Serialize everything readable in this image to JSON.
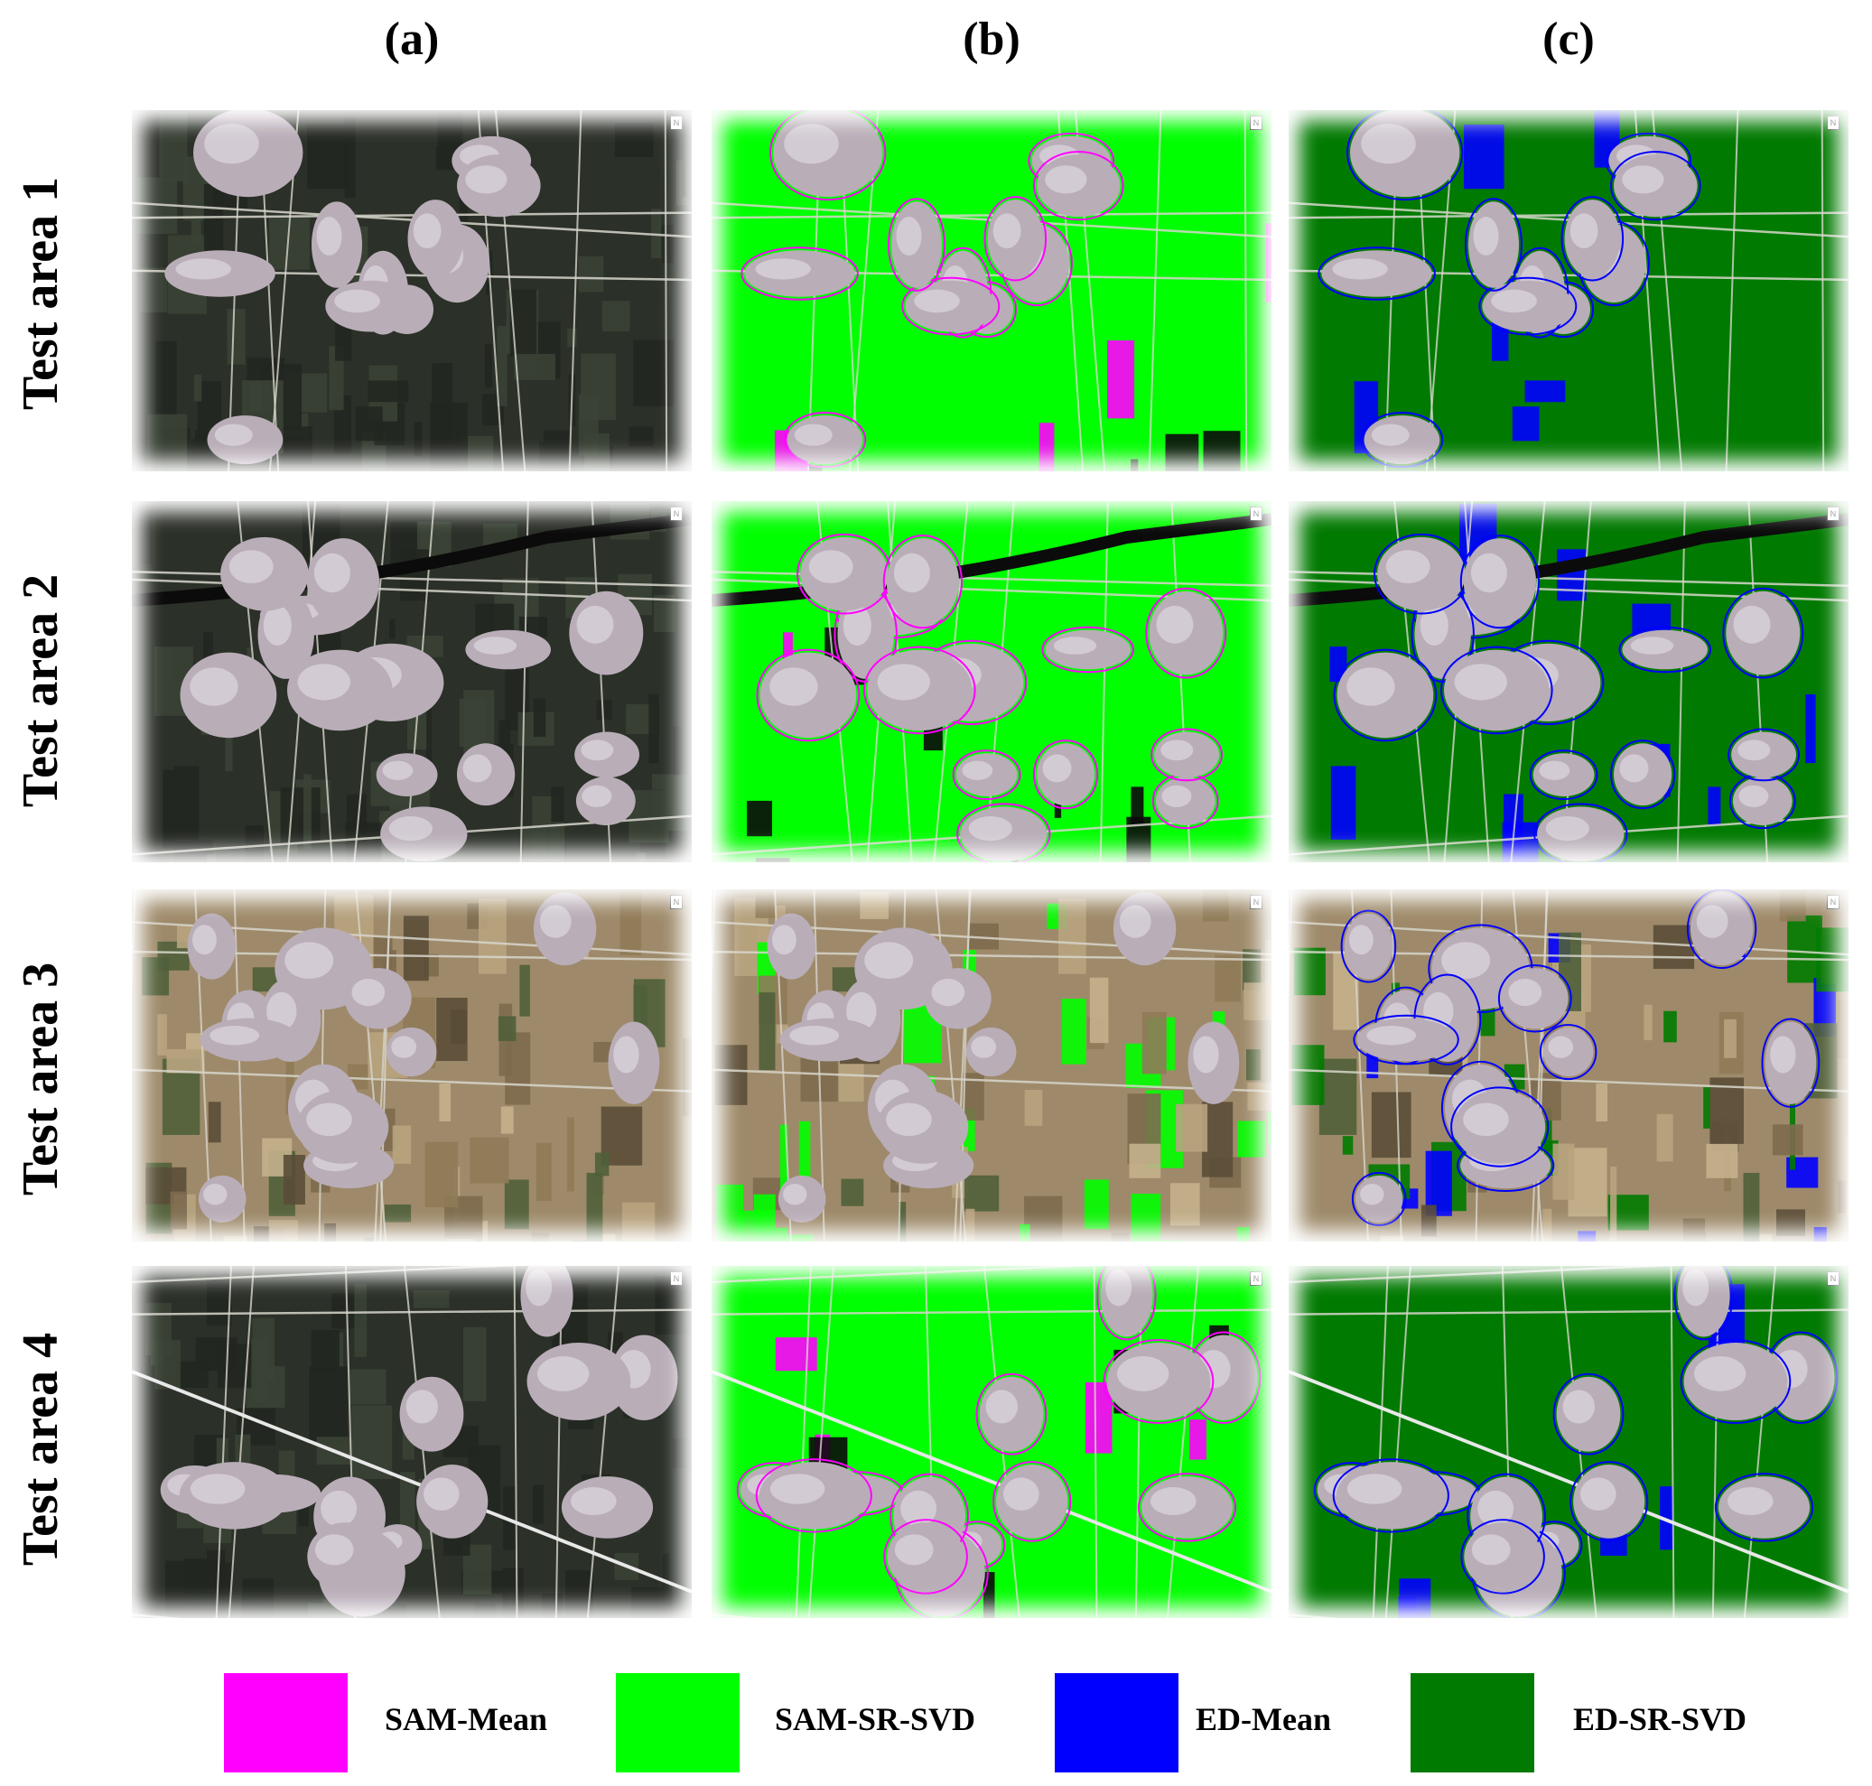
{
  "columns": [
    "(a)",
    "(b)",
    "(c)"
  ],
  "rows": [
    "Test area 1",
    "Test area 2",
    "Test area 3",
    "Test area 4"
  ],
  "north_arrow": "N",
  "legend": [
    {
      "label": "SAM-Mean",
      "color": "#ff00ff"
    },
    {
      "label": "SAM-SR-SVD",
      "color": "#00ff00"
    },
    {
      "label": "ED-Mean",
      "color": "#0000ff"
    },
    {
      "label": "ED-SR-SVD",
      "color": "#007a00"
    }
  ],
  "colors": {
    "area_dark_soil": "#2b3028",
    "area_tan_soil": "#9e8a6a",
    "settlement": "#b9adb8",
    "road": "#d8d6cc",
    "canal": "#0b0b0b"
  }
}
